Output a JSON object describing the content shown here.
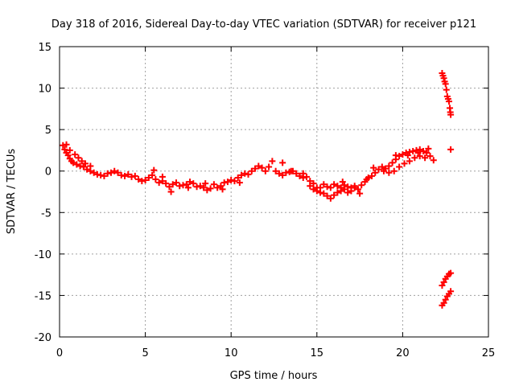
{
  "chart_data": {
    "type": "scatter",
    "title": "Day 318 of 2016, Sidereal Day-to-day VTEC variation (SDTVAR) for receiver p121",
    "xlabel": "GPS time / hours",
    "ylabel": "SDTVAR / TECUs",
    "xlim": [
      0,
      25
    ],
    "ylim": [
      -20,
      15
    ],
    "xticks": [
      "0",
      "5",
      "10",
      "15",
      "20",
      "25"
    ],
    "yticks": [
      "-20",
      "-15",
      "-10",
      "-5",
      "0",
      "5",
      "10",
      "15"
    ],
    "grid": true,
    "marker_color": "#ff0000",
    "series": [
      {
        "color": "#ff0000",
        "points": [
          [
            0.2,
            3.1
          ],
          [
            0.3,
            2.6
          ],
          [
            0.4,
            2.2
          ],
          [
            0.5,
            1.9
          ],
          [
            0.6,
            1.5
          ],
          [
            0.7,
            1.2
          ],
          [
            0.8,
            1.0
          ],
          [
            1.0,
            0.8
          ],
          [
            1.2,
            0.6
          ],
          [
            1.4,
            0.5
          ],
          [
            1.6,
            0.2
          ],
          [
            1.8,
            0.0
          ],
          [
            2.0,
            -0.2
          ],
          [
            2.2,
            -0.4
          ],
          [
            2.4,
            -0.5
          ],
          [
            2.6,
            -0.6
          ],
          [
            2.8,
            -0.3
          ],
          [
            3.0,
            -0.2
          ],
          [
            3.2,
            0.0
          ],
          [
            3.4,
            -0.2
          ],
          [
            3.6,
            -0.5
          ],
          [
            3.8,
            -0.6
          ],
          [
            4.0,
            -0.4
          ],
          [
            4.2,
            -0.7
          ],
          [
            4.4,
            -0.6
          ],
          [
            4.6,
            -1.0
          ],
          [
            4.8,
            -1.2
          ],
          [
            5.0,
            -1.1
          ],
          [
            5.2,
            -0.8
          ],
          [
            5.4,
            -0.5
          ],
          [
            5.6,
            -1.0
          ],
          [
            5.8,
            -1.4
          ],
          [
            6.0,
            -1.2
          ],
          [
            6.2,
            -1.5
          ],
          [
            6.4,
            -1.9
          ],
          [
            6.6,
            -1.6
          ],
          [
            6.8,
            -1.4
          ],
          [
            7.0,
            -1.8
          ],
          [
            7.2,
            -1.7
          ],
          [
            7.4,
            -1.6
          ],
          [
            7.6,
            -1.3
          ],
          [
            7.8,
            -1.5
          ],
          [
            8.0,
            -1.9
          ],
          [
            8.2,
            -1.8
          ],
          [
            8.4,
            -2.0
          ],
          [
            8.6,
            -2.3
          ],
          [
            8.8,
            -2.1
          ],
          [
            9.0,
            -1.6
          ],
          [
            9.2,
            -2.0
          ],
          [
            9.4,
            -1.8
          ],
          [
            9.6,
            -1.4
          ],
          [
            9.8,
            -1.3
          ],
          [
            10.0,
            -1.1
          ],
          [
            10.2,
            -1.2
          ],
          [
            10.4,
            -0.8
          ],
          [
            10.6,
            -0.5
          ],
          [
            10.8,
            -0.3
          ],
          [
            11.0,
            -0.4
          ],
          [
            11.2,
            0.0
          ],
          [
            11.4,
            0.3
          ],
          [
            11.6,
            0.6
          ],
          [
            11.8,
            0.4
          ],
          [
            12.0,
            0.0
          ],
          [
            12.2,
            0.5
          ],
          [
            12.4,
            1.2
          ],
          [
            12.6,
            0.0
          ],
          [
            12.8,
            -0.3
          ],
          [
            13.0,
            -0.5
          ],
          [
            13.2,
            -0.2
          ],
          [
            13.4,
            -0.1
          ],
          [
            13.6,
            0.0
          ],
          [
            13.8,
            -0.3
          ],
          [
            14.0,
            -0.6
          ],
          [
            14.2,
            -0.8
          ],
          [
            14.4,
            -0.7
          ],
          [
            14.6,
            -1.2
          ],
          [
            14.8,
            -1.5
          ],
          [
            15.0,
            -2.0
          ],
          [
            15.2,
            -2.6
          ],
          [
            15.4,
            -2.7
          ],
          [
            15.6,
            -3.0
          ],
          [
            15.8,
            -3.3
          ],
          [
            16.0,
            -2.9
          ],
          [
            16.2,
            -2.6
          ],
          [
            16.4,
            -2.4
          ],
          [
            16.6,
            -2.2
          ],
          [
            16.8,
            -2.6
          ],
          [
            17.0,
            -2.4
          ],
          [
            17.2,
            -2.0
          ],
          [
            17.4,
            -2.2
          ],
          [
            17.6,
            -1.7
          ],
          [
            17.8,
            -1.3
          ],
          [
            18.0,
            -0.8
          ],
          [
            18.2,
            -0.6
          ],
          [
            18.4,
            -0.2
          ],
          [
            18.6,
            0.2
          ],
          [
            18.8,
            0.5
          ],
          [
            19.0,
            0.3
          ],
          [
            19.2,
            0.6
          ],
          [
            19.4,
            1.0
          ],
          [
            19.6,
            1.4
          ],
          [
            19.8,
            1.8
          ],
          [
            20.0,
            2.0
          ],
          [
            20.2,
            2.2
          ],
          [
            20.4,
            2.3
          ],
          [
            20.6,
            2.4
          ],
          [
            20.8,
            2.5
          ],
          [
            21.0,
            2.6
          ],
          [
            21.2,
            2.4
          ],
          [
            21.4,
            2.2
          ],
          [
            21.6,
            1.8
          ],
          [
            21.8,
            1.3
          ],
          [
            14.6,
            -1.8
          ],
          [
            14.8,
            -2.2
          ],
          [
            15.0,
            -2.4
          ],
          [
            15.2,
            -2.0
          ],
          [
            15.4,
            -1.6
          ],
          [
            15.6,
            -1.9
          ],
          [
            15.8,
            -2.0
          ],
          [
            16.0,
            -1.6
          ],
          [
            16.2,
            -1.8
          ],
          [
            16.4,
            -2.0
          ],
          [
            16.6,
            -1.7
          ],
          [
            16.8,
            -1.9
          ],
          [
            17.0,
            -2.0
          ],
          [
            17.2,
            -1.8
          ],
          [
            18.9,
            0.0
          ],
          [
            19.2,
            -0.2
          ],
          [
            19.5,
            0.0
          ],
          [
            19.8,
            0.5
          ],
          [
            20.1,
            0.9
          ],
          [
            20.4,
            1.2
          ],
          [
            20.7,
            1.6
          ],
          [
            21.0,
            1.8
          ],
          [
            21.3,
            1.6
          ],
          [
            0.4,
            3.2
          ],
          [
            0.6,
            2.5
          ],
          [
            0.9,
            2.0
          ],
          [
            1.1,
            1.6
          ],
          [
            1.3,
            1.2
          ],
          [
            1.5,
            0.9
          ],
          [
            1.8,
            0.6
          ],
          [
            5.5,
            0.1
          ],
          [
            6.0,
            -0.7
          ],
          [
            6.5,
            -2.5
          ],
          [
            7.5,
            -2.0
          ],
          [
            8.5,
            -1.5
          ],
          [
            9.5,
            -2.2
          ],
          [
            10.5,
            -1.4
          ],
          [
            13.0,
            1.0
          ],
          [
            13.5,
            0.0
          ],
          [
            14.2,
            -0.3
          ],
          [
            16.5,
            -1.3
          ],
          [
            17.5,
            -2.7
          ],
          [
            17.9,
            -1.0
          ],
          [
            18.3,
            0.4
          ],
          [
            19.6,
            1.9
          ],
          [
            20.3,
            1.9
          ],
          [
            20.9,
            2.2
          ],
          [
            21.5,
            2.7
          ],
          [
            22.3,
            11.8
          ],
          [
            22.4,
            11.2
          ],
          [
            22.5,
            10.5
          ],
          [
            22.55,
            9.8
          ],
          [
            22.6,
            9.0
          ],
          [
            22.7,
            8.4
          ],
          [
            22.75,
            7.6
          ],
          [
            22.8,
            6.8
          ],
          [
            22.35,
            11.5
          ],
          [
            22.45,
            10.8
          ],
          [
            22.65,
            8.7
          ],
          [
            22.78,
            7.1
          ],
          [
            22.8,
            2.6
          ],
          [
            22.3,
            -13.8
          ],
          [
            22.4,
            -13.4
          ],
          [
            22.5,
            -13.0
          ],
          [
            22.6,
            -12.7
          ],
          [
            22.7,
            -12.4
          ],
          [
            22.8,
            -12.3
          ],
          [
            22.3,
            -16.2
          ],
          [
            22.4,
            -15.9
          ],
          [
            22.5,
            -15.5
          ],
          [
            22.6,
            -15.1
          ],
          [
            22.7,
            -14.8
          ],
          [
            22.8,
            -14.5
          ]
        ]
      }
    ]
  }
}
